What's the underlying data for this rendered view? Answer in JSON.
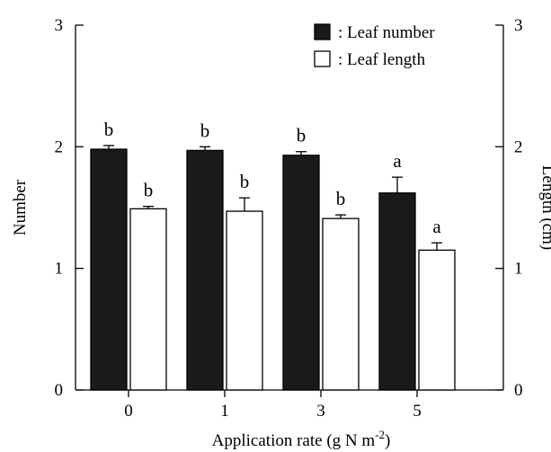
{
  "chart_data": {
    "type": "bar",
    "categories": [
      "0",
      "1",
      "3",
      "5"
    ],
    "xlabel_main": "Application rate  (g N m",
    "xlabel_sup": "-2",
    "xlabel_tail": ")",
    "ylabel": "Number",
    "y2label": "Length (cm)",
    "ylim": [
      0,
      3
    ],
    "y2lim": [
      0,
      3
    ],
    "yticks": [
      "0",
      "1",
      "2",
      "3"
    ],
    "y2ticks": [
      "0",
      "1",
      "2",
      "3"
    ],
    "legend_placement": "top-right",
    "series": [
      {
        "name": ": Leaf number",
        "axis": "left",
        "color": "#1a1a1a",
        "values": [
          1.98,
          1.97,
          1.93,
          1.62
        ],
        "errors": [
          0.03,
          0.03,
          0.03,
          0.13
        ],
        "labels": [
          "b",
          "b",
          "b",
          "a"
        ]
      },
      {
        "name": ": Leaf length",
        "axis": "right",
        "color": "#ffffff",
        "values": [
          1.49,
          1.47,
          1.41,
          1.15
        ],
        "errors": [
          0.02,
          0.11,
          0.03,
          0.06
        ],
        "labels": [
          "b",
          "b",
          "b",
          "a"
        ]
      }
    ]
  }
}
